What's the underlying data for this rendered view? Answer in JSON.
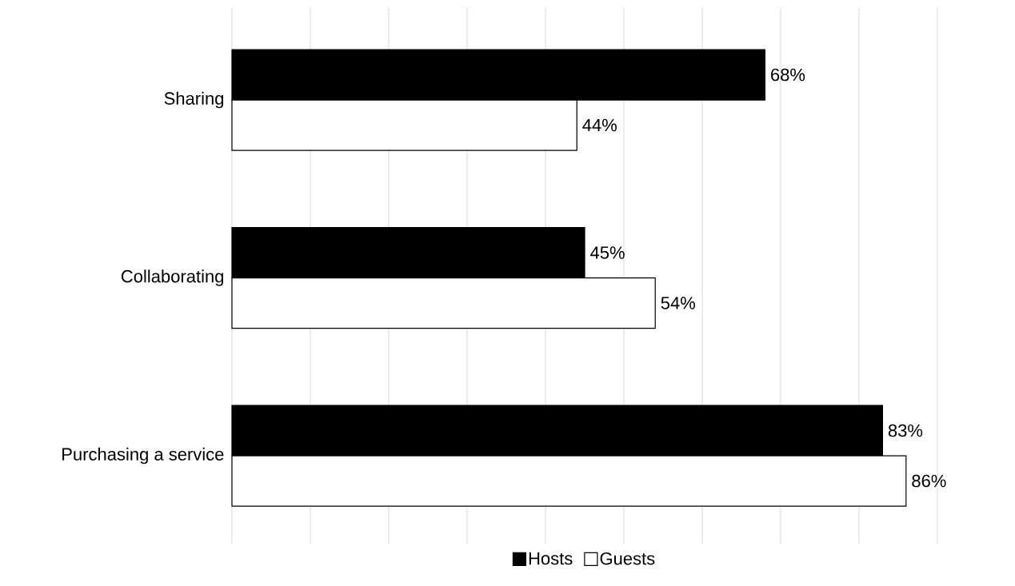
{
  "chart_data": {
    "type": "bar",
    "orientation": "horizontal",
    "categories": [
      "Sharing",
      "Collaborating",
      "Purchasing a service"
    ],
    "series": [
      {
        "name": "Hosts",
        "color": "#000000",
        "values": [
          68,
          45,
          83
        ],
        "value_labels": [
          "68%",
          "45%",
          "83%"
        ]
      },
      {
        "name": "Guests",
        "color": "#ffffff",
        "values": [
          44,
          54,
          86
        ],
        "value_labels": [
          "44%",
          "54%",
          "86%"
        ]
      }
    ],
    "xlim": [
      0,
      90
    ],
    "xticks": [
      {
        "value": 0,
        "label": null
      },
      {
        "value": 10,
        "label": null
      },
      {
        "value": 20,
        "label": null
      },
      {
        "value": 30,
        "label": null
      },
      {
        "value": 40,
        "label": null
      },
      {
        "value": 50,
        "label": null
      },
      {
        "value": 60,
        "label": null
      },
      {
        "value": 70,
        "label": null
      },
      {
        "value": 80,
        "label": null
      },
      {
        "value": 90,
        "label": null
      }
    ],
    "tick_labels": "y",
    "grid": "x",
    "legend": "bottom"
  }
}
